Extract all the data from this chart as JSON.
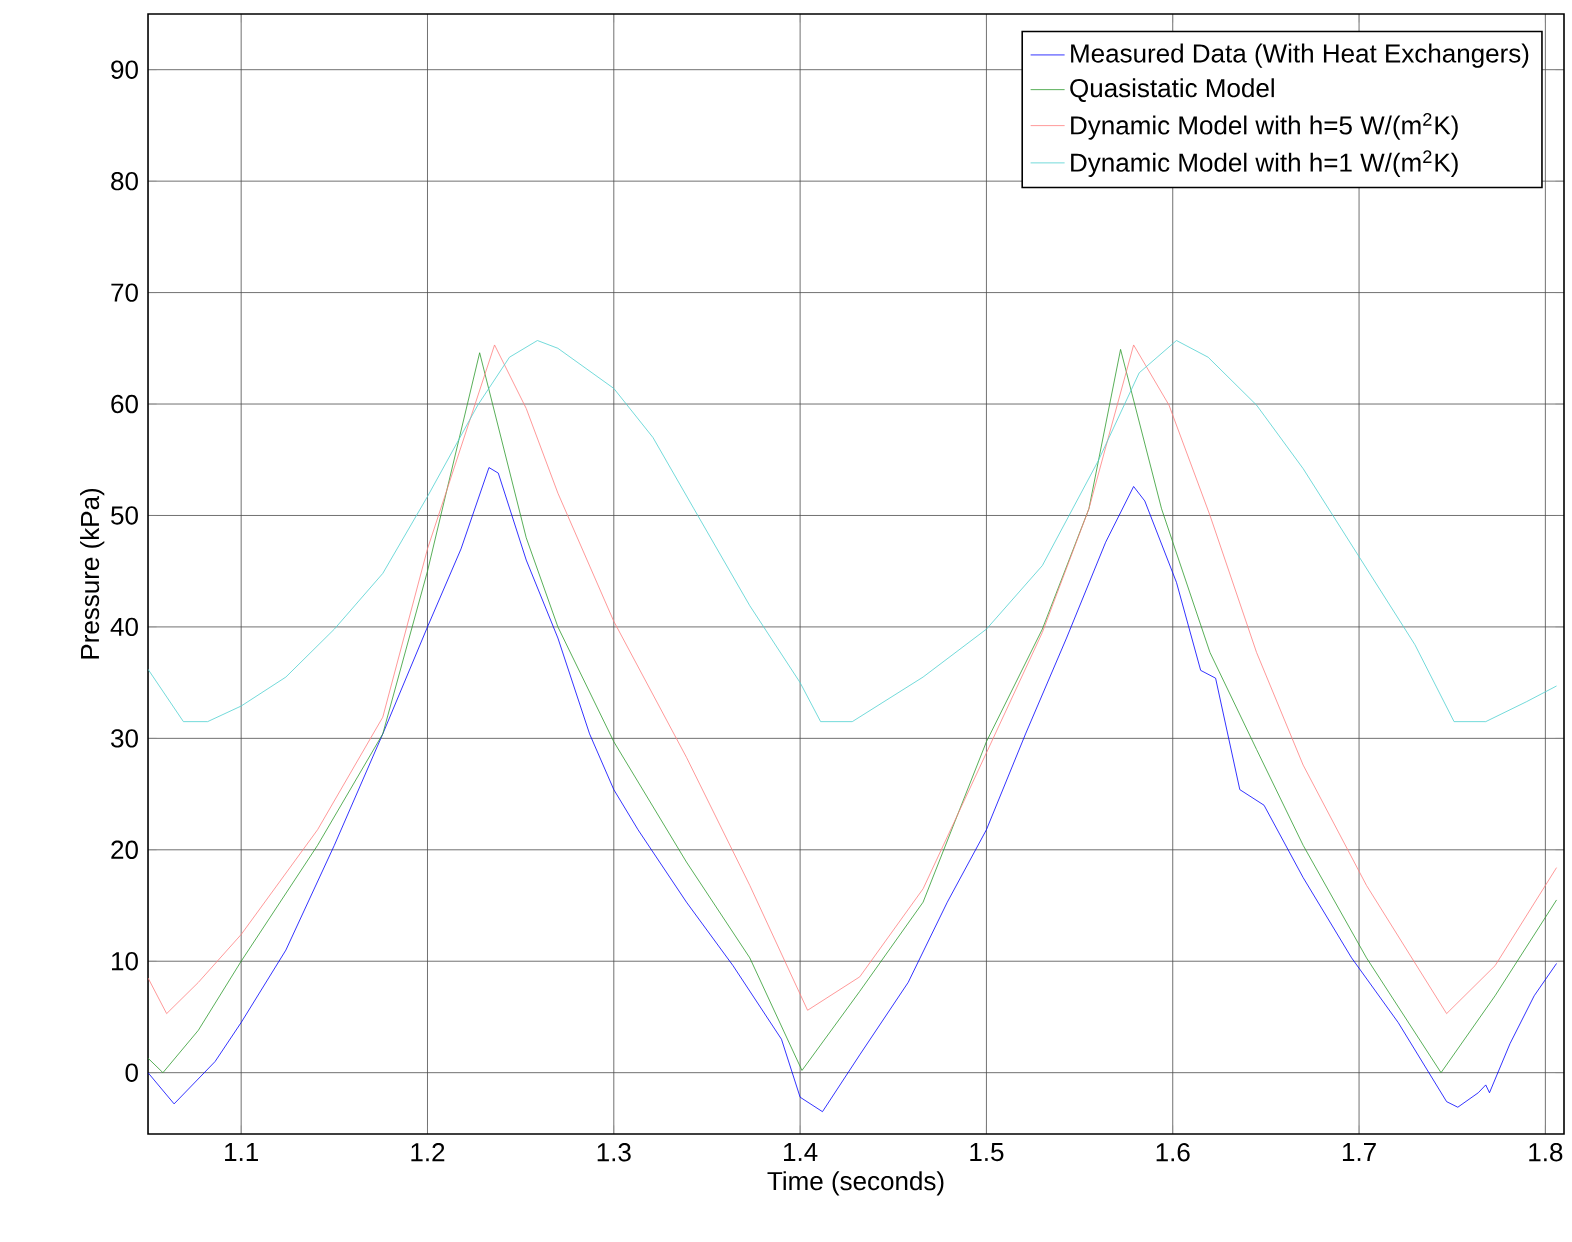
{
  "chart_data": {
    "type": "line",
    "xlabel": "Time (seconds)",
    "ylabel": "Pressure (kPa)",
    "xlim": [
      1.05,
      1.81
    ],
    "ylim": [
      -5.5,
      95
    ],
    "xticks": [
      1.1,
      1.2,
      1.3,
      1.4,
      1.5,
      1.6,
      1.7,
      1.8
    ],
    "yticks": [
      0,
      10,
      20,
      30,
      40,
      50,
      60,
      70,
      80,
      90
    ],
    "grid": true,
    "legend": "top right",
    "line_style": "solid",
    "marker": "none",
    "series": [
      {
        "name": "Measured Data (With Heat Exchangers)",
        "color": "#0000ff",
        "x": [
          1.05,
          1.064,
          1.086,
          1.1,
          1.124,
          1.15,
          1.176,
          1.2,
          1.218,
          1.233,
          1.238,
          1.253,
          1.27,
          1.287,
          1.3,
          1.313,
          1.339,
          1.364,
          1.39,
          1.4,
          1.412,
          1.432,
          1.458,
          1.479,
          1.5,
          1.521,
          1.543,
          1.564,
          1.579,
          1.585,
          1.602,
          1.615,
          1.623,
          1.636,
          1.649,
          1.67,
          1.696,
          1.721,
          1.747,
          1.753,
          1.764,
          1.768,
          1.77,
          1.781,
          1.794,
          1.806
        ],
        "values": [
          0,
          -2.8,
          1,
          4.5,
          11,
          20.4,
          30.4,
          40,
          47,
          54.3,
          53.8,
          46,
          39,
          30.4,
          25.4,
          21.8,
          15.3,
          9.6,
          3,
          -2.2,
          -3.5,
          1.6,
          8.1,
          15.3,
          21.8,
          30.4,
          39,
          47.6,
          52.6,
          51.3,
          44,
          36.1,
          35.4,
          25.4,
          24,
          17.5,
          10.3,
          4.5,
          -2.6,
          -3.1,
          -1.8,
          -1.1,
          -1.8,
          2.6,
          6.9,
          9.8
        ]
      },
      {
        "name": "Quasistatic Model",
        "color": "#2e9a2e",
        "x": [
          1.05,
          1.058,
          1.077,
          1.1,
          1.141,
          1.176,
          1.2,
          1.228,
          1.253,
          1.27,
          1.3,
          1.339,
          1.373,
          1.401,
          1.432,
          1.466,
          1.5,
          1.53,
          1.555,
          1.572,
          1.594,
          1.62,
          1.645,
          1.67,
          1.704,
          1.744,
          1.773,
          1.806
        ],
        "values": [
          1.3,
          0,
          3.8,
          10,
          20.4,
          30.4,
          45,
          64.6,
          48,
          40,
          29.7,
          18.9,
          10.3,
          0.2,
          7.3,
          15.3,
          29.7,
          39.8,
          50.6,
          64.9,
          50.6,
          37.7,
          29,
          20.4,
          10.3,
          0,
          6.9,
          15.5
        ]
      },
      {
        "name": "Dynamic Model with h=5 W/(m$^{2}$K)",
        "color": "#ff7f7f",
        "x": [
          1.05,
          1.06,
          1.077,
          1.1,
          1.141,
          1.176,
          1.2,
          1.236,
          1.253,
          1.27,
          1.3,
          1.339,
          1.373,
          1.404,
          1.432,
          1.466,
          1.5,
          1.53,
          1.555,
          1.579,
          1.598,
          1.62,
          1.645,
          1.67,
          1.704,
          1.747,
          1.773,
          1.806
        ],
        "values": [
          8.5,
          5.3,
          8.1,
          12.4,
          21.8,
          31.9,
          47,
          65.3,
          59.6,
          52,
          40.5,
          28.3,
          16.8,
          5.6,
          8.6,
          16.5,
          28.7,
          39.5,
          50.6,
          65.3,
          59.9,
          50,
          37.7,
          27.6,
          16.8,
          5.3,
          9.6,
          18.4
        ]
      },
      {
        "name": "Dynamic Model with h=1 W/(m$^{2}$K)",
        "color": "#4fd0d0",
        "x": [
          1.05,
          1.069,
          1.082,
          1.1,
          1.124,
          1.15,
          1.176,
          1.2,
          1.227,
          1.244,
          1.259,
          1.27,
          1.3,
          1.321,
          1.343,
          1.373,
          1.4,
          1.411,
          1.428,
          1.466,
          1.5,
          1.53,
          1.56,
          1.582,
          1.602,
          1.619,
          1.645,
          1.67,
          1.7,
          1.73,
          1.751,
          1.768,
          1.79,
          1.806
        ],
        "values": [
          36.2,
          31.5,
          31.5,
          32.9,
          35.5,
          39.8,
          44.8,
          51.7,
          59.9,
          64.2,
          65.7,
          65,
          61.4,
          57,
          50.6,
          41.9,
          35,
          31.5,
          31.5,
          35.5,
          39.8,
          45.5,
          54.9,
          62.8,
          65.7,
          64.2,
          59.9,
          54.2,
          46.3,
          38.4,
          31.5,
          31.5,
          33.3,
          34.7
        ]
      }
    ]
  }
}
